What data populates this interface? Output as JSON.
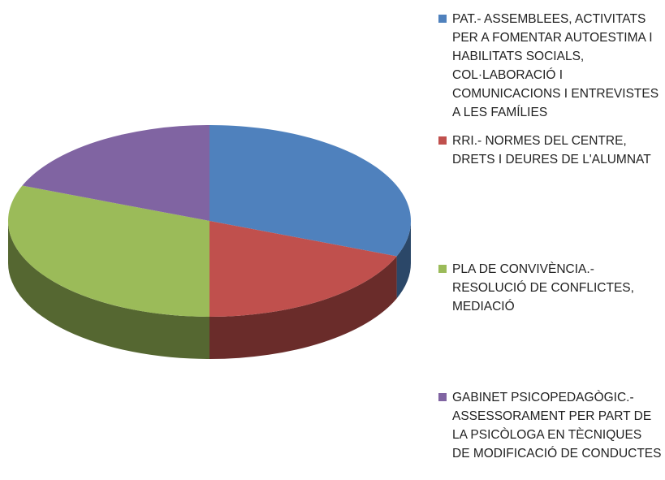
{
  "chart_data": {
    "type": "pie3d",
    "categories": [
      "PAT.- ASSEMBLEES, ACTIVITATS PER A FOMENTAR AUTOESTIMA I HABILITATS SOCIALS, COL·LABORACIÓ I COMUNICACIONS I ENTREVISTES A LES FAMÍLIES",
      "RRI.- NORMES DEL CENTRE, DRETS I DEURES DE L'ALUMNAT",
      "PLA DE CONVIVÈNCIA.- RESOLUCIÓ DE CONFLICTES, MEDIACIÓ",
      "GABINET PSICOPEDAGÒGIC.- ASSESSORAMENT PER PART DE LA PSICÒLOGA EN TÈCNIQUES DE MODIFICACIÓ DE CONDUCTES"
    ],
    "values": [
      31,
      19,
      31,
      19
    ],
    "colors": [
      "#4f81bd",
      "#c0504d",
      "#9bbb59",
      "#8064a2"
    ],
    "legend": "right"
  }
}
